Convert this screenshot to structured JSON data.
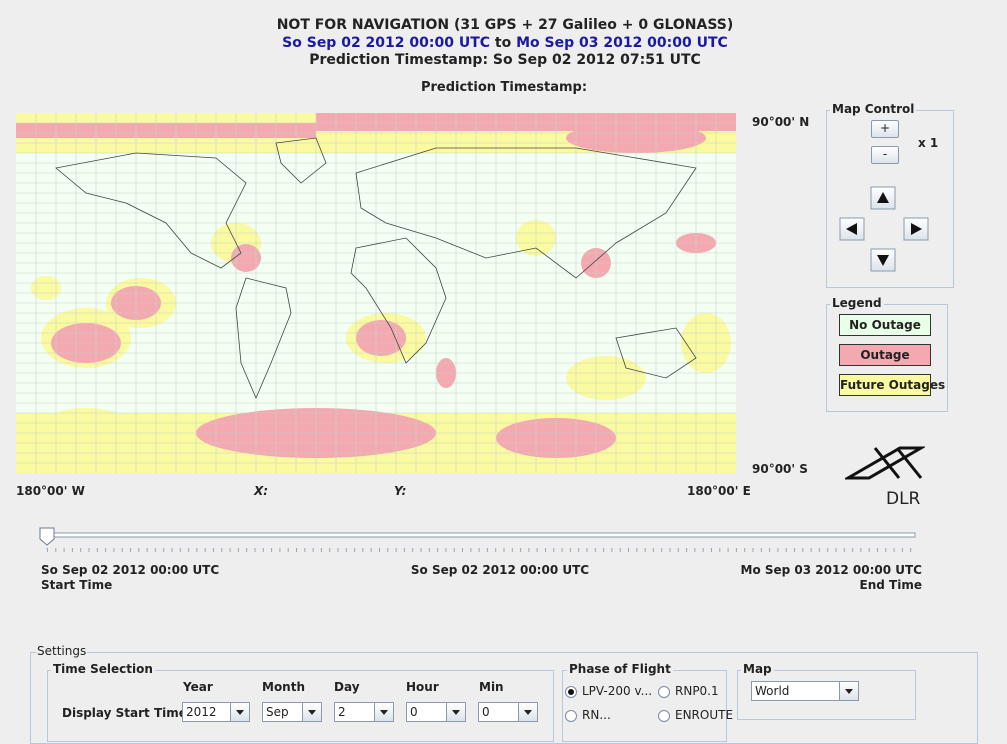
{
  "header": {
    "title": "NOT FOR NAVIGATION (31 GPS + 27 Galileo + 0 GLONASS)",
    "period_start": "So Sep 02 2012 00:00 UTC",
    "period_to": "to",
    "period_end": "Mo Sep 03 2012 00:00 UTC",
    "prediction": "Prediction Timestamp: So Sep 02 2012 07:51 UTC"
  },
  "map": {
    "title": "Prediction Timestamp:",
    "lat_top": "90°00' N",
    "lat_bottom": "90°00' S",
    "lon_left": "180°00' W",
    "lon_right": "180°00' E",
    "x_label": "X:",
    "y_label": "Y:"
  },
  "map_control": {
    "title": "Map Control",
    "zoom_in": "+",
    "zoom_out": "-",
    "zoom_level": "x 1"
  },
  "legend": {
    "title": "Legend",
    "items": [
      "No Outage",
      "Outage",
      "Future Outages"
    ]
  },
  "logo": "DLR",
  "slider": {
    "start": "So Sep 02 2012 00:00 UTC",
    "start_label": "Start Time",
    "current": "So Sep 02 2012 00:00 UTC",
    "end": "Mo Sep 03 2012 00:00 UTC",
    "end_label": "End Time"
  },
  "settings": {
    "title": "Settings",
    "time_selection": {
      "title": "Time Selection",
      "columns": [
        "Year",
        "Month",
        "Day",
        "Hour",
        "Min"
      ],
      "row_label": "Display Start Time:",
      "values": [
        "2012",
        "Sep",
        "2",
        "0",
        "0"
      ]
    },
    "phase_of_flight": {
      "title": "Phase of Flight",
      "options": [
        "LPV-200 v...",
        "RNP0.1",
        "RN...",
        "ENROUTE"
      ]
    },
    "map": {
      "title": "Map",
      "value": "World"
    }
  }
}
